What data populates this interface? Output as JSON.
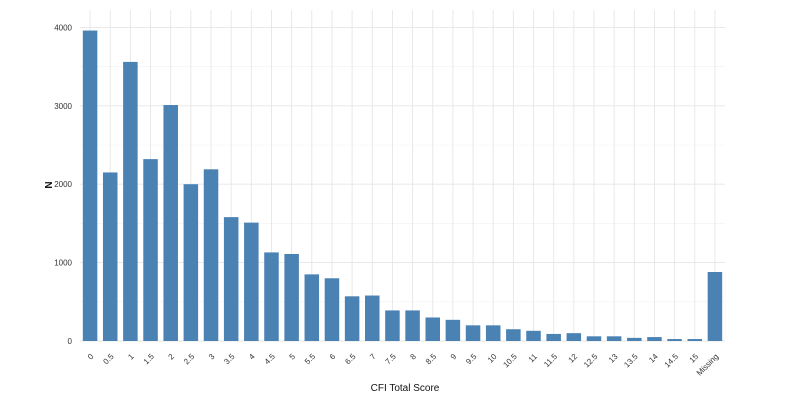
{
  "chart_data": {
    "type": "bar",
    "title": "",
    "xlabel": "CFI Total Score",
    "ylabel": "N",
    "ylim": [
      0,
      4200
    ],
    "yticks": [
      0,
      1000,
      2000,
      3000,
      4000
    ],
    "grid": true,
    "legend": "none",
    "categories": [
      "0",
      "0.5",
      "1",
      "1.5",
      "2",
      "2.5",
      "3",
      "3.5",
      "4",
      "4.5",
      "5",
      "5.5",
      "6",
      "6.5",
      "7",
      "7.5",
      "8",
      "8.5",
      "9",
      "9.5",
      "10",
      "10.5",
      "11",
      "11.5",
      "12",
      "12.5",
      "13",
      "13.5",
      "14",
      "14.5",
      "15",
      "Missing"
    ],
    "values": [
      3960,
      2150,
      3560,
      2320,
      3010,
      2000,
      2190,
      1580,
      1510,
      1130,
      1110,
      850,
      800,
      570,
      580,
      390,
      390,
      300,
      270,
      200,
      200,
      150,
      130,
      90,
      100,
      60,
      60,
      40,
      50,
      25,
      25,
      880
    ],
    "bar_color": "#4a82b4"
  }
}
